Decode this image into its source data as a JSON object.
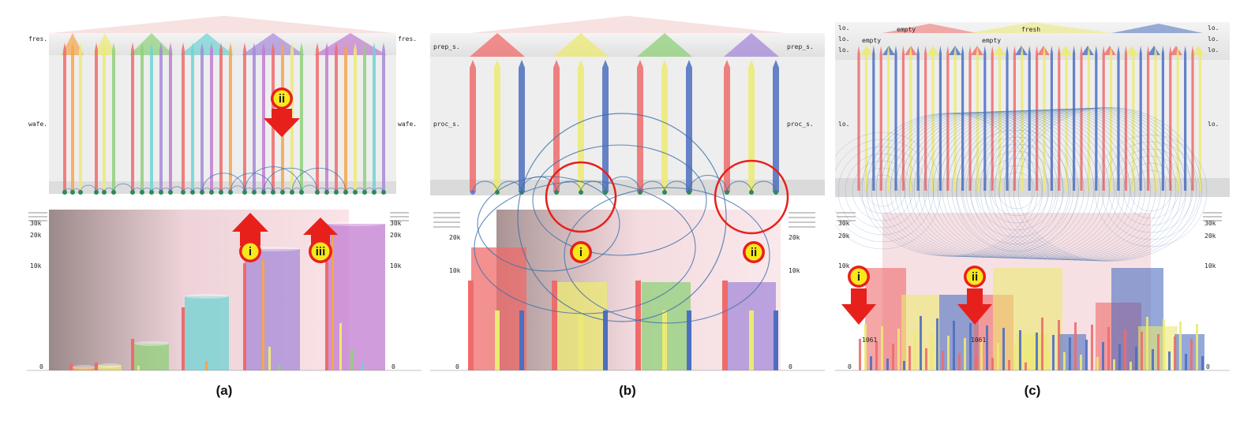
{
  "panels": [
    {
      "id": "a",
      "caption": "(a)",
      "left_labels": [
        "fres.",
        "wafe."
      ],
      "right_labels": [
        "fres.",
        "wafe."
      ],
      "y_ticks": [
        "30k",
        "20k",
        "10k",
        "0"
      ],
      "y_ticks_right": [
        "30k",
        "20k",
        "10k",
        "0"
      ],
      "markers": [
        "ii",
        "i",
        "iii"
      ]
    },
    {
      "id": "b",
      "caption": "(b)",
      "left_labels": [
        "prep_s.",
        "proc_s."
      ],
      "right_labels": [
        "prep_s.",
        "proc_s."
      ],
      "y_ticks": [
        "20k",
        "10k",
        "0"
      ],
      "y_ticks_right": [
        "20k",
        "10k",
        "0"
      ],
      "markers": [
        "i",
        "ii"
      ]
    },
    {
      "id": "c",
      "caption": "(c)",
      "left_labels": [
        "lo.",
        "lo.",
        "lo.",
        "lo."
      ],
      "right_labels": [
        "lo.",
        "lo.",
        "lo.",
        "lo."
      ],
      "top_labels": [
        "empty",
        "fresh",
        "empty",
        "empty"
      ],
      "y_ticks": [
        "30k",
        "20k",
        "10k",
        "0"
      ],
      "y_ticks_right": [
        "30k",
        "20k",
        "10k",
        "0"
      ],
      "bar_labels": [
        "1061",
        "1061"
      ],
      "markers": [
        "i",
        "ii"
      ]
    }
  ],
  "colors": {
    "red": "#ef6b6b",
    "orange": "#f5a64a",
    "yellow": "#ecea72",
    "green": "#8fd07a",
    "cyan": "#6fd3d3",
    "blue": "#4c6fc0",
    "purple": "#a58ad8",
    "magenta": "#c27bd0",
    "arc": "#3d6fa8",
    "marker_red": "#e8201c",
    "marker_yellow": "#f7e81c"
  }
}
